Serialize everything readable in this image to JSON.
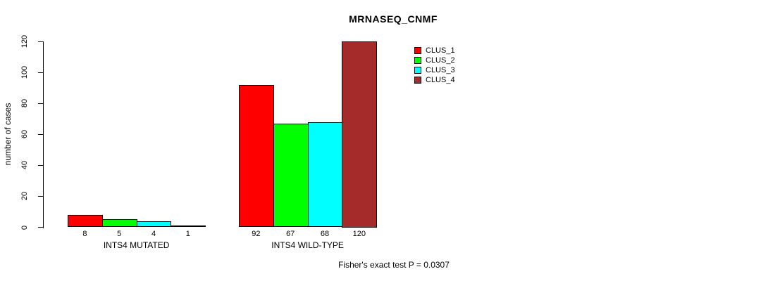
{
  "chart_data": {
    "type": "bar",
    "title": "MRNASEQ_CNMF",
    "xlabel": "",
    "ylabel": "number of cases",
    "ylim": [
      0,
      120
    ],
    "yticks": [
      0,
      20,
      40,
      60,
      80,
      100,
      120
    ],
    "grid": false,
    "legend_position": "top-right",
    "bar_value_labels_shown": true,
    "categories": [
      "INTS4 MUTATED",
      "INTS4 WILD-TYPE"
    ],
    "series": [
      {
        "name": "CLUS_1",
        "color": "#ff0000",
        "values": [
          8,
          92
        ]
      },
      {
        "name": "CLUS_2",
        "color": "#00ff00",
        "values": [
          5,
          67
        ]
      },
      {
        "name": "CLUS_3",
        "color": "#00ffff",
        "values": [
          4,
          68
        ]
      },
      {
        "name": "CLUS_4",
        "color": "#a52a2a",
        "values": [
          1,
          120
        ]
      }
    ],
    "groups": [
      {
        "label": "INTS4 MUTATED",
        "values": [
          8,
          5,
          4,
          1
        ]
      },
      {
        "label": "INTS4 WILD-TYPE",
        "values": [
          92,
          67,
          68,
          120
        ]
      }
    ],
    "footnote": "Fisher's exact test P = 0.0307"
  }
}
